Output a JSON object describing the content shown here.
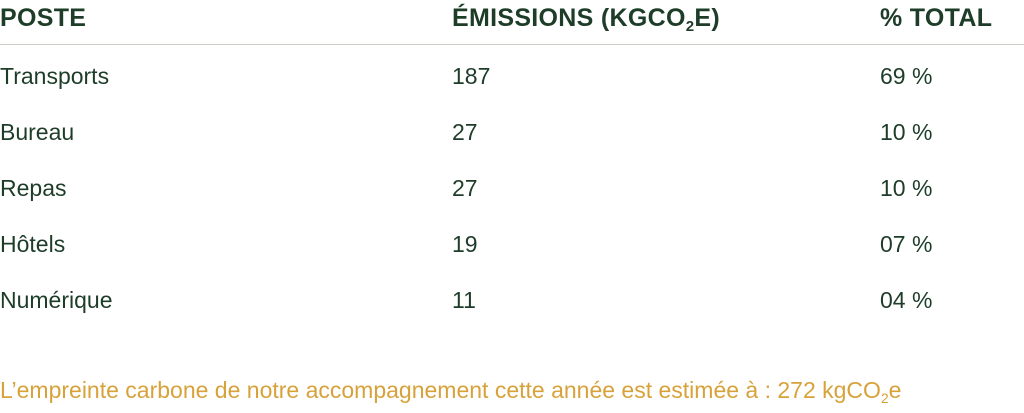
{
  "table": {
    "header": [
      "POSTE",
      [
        "ÉMISSIONS (KGCO",
        "2",
        "E)"
      ],
      "% TOTAL"
    ],
    "rows": [
      [
        "Transports",
        "187",
        "69 %"
      ],
      [
        "Bureau",
        "27",
        "10 %"
      ],
      [
        "Repas",
        "27",
        "10 %"
      ],
      [
        "Hôtels",
        "19",
        "07 %"
      ],
      [
        "Numérique",
        "11",
        "04 %"
      ]
    ]
  },
  "footer": [
    "L’empreinte carbone de notre accompagnement cette année est estimée à : 272 kgCO",
    "2",
    "e"
  ]
}
